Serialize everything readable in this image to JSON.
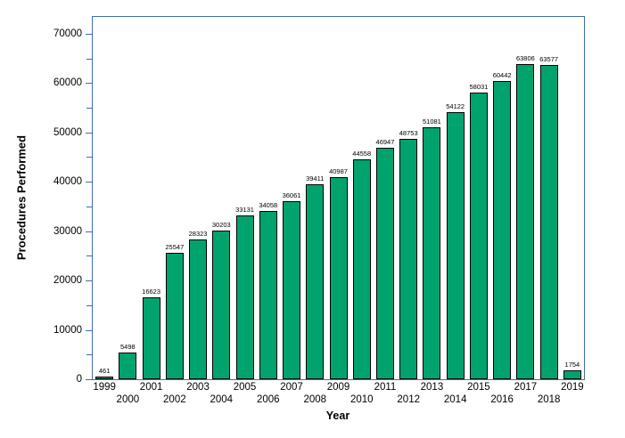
{
  "chart_data": {
    "type": "bar",
    "title": "",
    "xlabel": "Year",
    "ylabel": "Procedures Performed",
    "categories": [
      "1999",
      "2000",
      "2001",
      "2002",
      "2003",
      "2004",
      "2005",
      "2006",
      "2007",
      "2008",
      "2009",
      "2010",
      "2011",
      "2012",
      "2013",
      "2014",
      "2015",
      "2016",
      "2017",
      "2018",
      "2019"
    ],
    "values": [
      461,
      5498,
      16623,
      25547,
      28323,
      30203,
      33131,
      34058,
      36061,
      39411,
      40987,
      44558,
      46947,
      48753,
      51081,
      54122,
      58031,
      60442,
      63806,
      63577,
      1754
    ],
    "bar_value_labels_shown": true,
    "ylim": [
      0,
      70000
    ],
    "ytick_interval": 10000,
    "y_minor_tick_interval": 5000,
    "ytick_labels": [
      "0",
      "10000",
      "20000",
      "30000",
      "40000",
      "50000",
      "60000",
      "70000"
    ],
    "grid": false,
    "legend_position": "none",
    "x_labels_staggered": true,
    "colors": {
      "bar_fill": "#00a36d",
      "bar_border": "#000000",
      "axis_frame": "#3e6fa9",
      "text": "#000000",
      "background": "#ffffff"
    }
  }
}
